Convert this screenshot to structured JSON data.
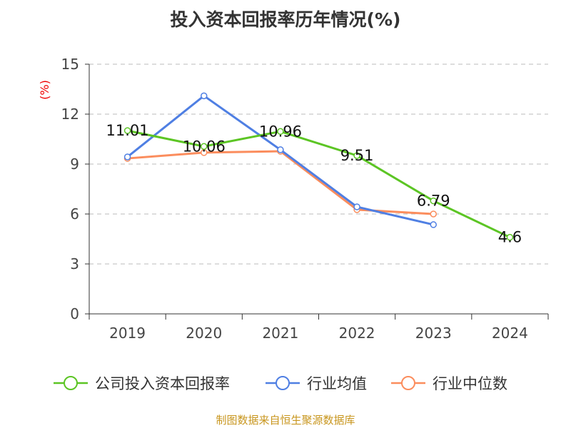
{
  "chart_data": {
    "type": "line",
    "title": "投入资本回报率历年情况(%)",
    "ylabel": "(%)",
    "xlabel": "",
    "categories": [
      "2019",
      "2020",
      "2021",
      "2022",
      "2023",
      "2024"
    ],
    "ylim": [
      0,
      15
    ],
    "yticks": [
      "0",
      "3",
      "6",
      "9",
      "12",
      "15"
    ],
    "grid": true,
    "legend_position": "bottom",
    "series": [
      {
        "name": "公司投入资本回报率",
        "color": "#5cc524",
        "values": [
          11.01,
          10.06,
          10.96,
          9.51,
          6.79,
          4.6
        ],
        "labels": [
          "11.01",
          "10.06",
          "10.96",
          "9.51",
          "6.79",
          "4.6"
        ]
      },
      {
        "name": "行业均值",
        "color": "#4f7fe3",
        "values": [
          9.43,
          13.1,
          9.86,
          6.43,
          5.36,
          null
        ]
      },
      {
        "name": "行业中位数",
        "color": "#fb8d5d",
        "values": [
          9.34,
          9.69,
          9.77,
          6.26,
          6.0,
          null
        ]
      }
    ]
  },
  "footer": "制图数据来自恒生聚源数据库"
}
